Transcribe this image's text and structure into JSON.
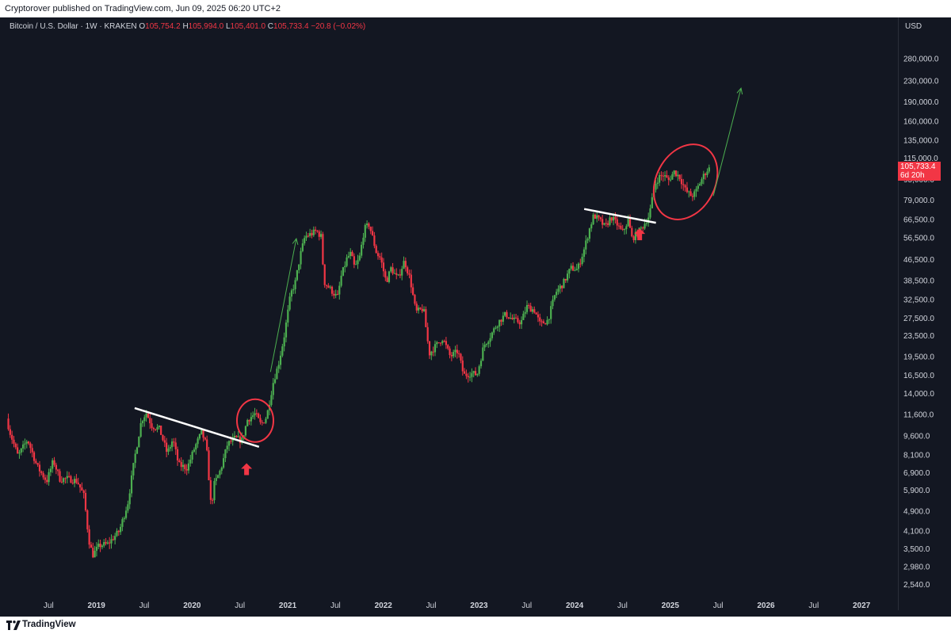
{
  "header": {
    "publisher_line": "Cryptorover published on TradingView.com, Jun 09, 2025 06:20 UTC+2"
  },
  "legend": {
    "symbol": "Bitcoin / U.S. Dollar · 1W · KRAKEN",
    "o_label": "O",
    "o_value": "105,754.2",
    "h_label": "H",
    "h_value": "105,994.0",
    "l_label": "L",
    "l_value": "105,401.0",
    "c_label": "C",
    "c_value": "105,733.4",
    "change": "−20.8 (−0.02%)"
  },
  "price_axis": {
    "currency": "USD"
  },
  "last_price": {
    "value": "105,733.4",
    "countdown": "6d 20h"
  },
  "footer": {
    "brand": "TradingView"
  },
  "colors": {
    "background": "#131722",
    "up": "#4caf50",
    "down": "#f23645",
    "mixed": "#c8a45c",
    "trendline": "#ffffff",
    "arrow_green": "#4caf50",
    "marker_red": "#f23645"
  },
  "chart_data": {
    "type": "candlestick",
    "scale": "log",
    "interval": "1W",
    "ylim": [
      2300,
      350000
    ],
    "y_ticks": [
      {
        "label": "280,000.0",
        "value": 280000
      },
      {
        "label": "230,000.0",
        "value": 230000
      },
      {
        "label": "190,000.0",
        "value": 190000
      },
      {
        "label": "160,000.0",
        "value": 160000
      },
      {
        "label": "135,000.0",
        "value": 135000
      },
      {
        "label": "115,000.0",
        "value": 115000
      },
      {
        "label": "95,000.0",
        "value": 95000
      },
      {
        "label": "79,000.0",
        "value": 79000
      },
      {
        "label": "66,500.0",
        "value": 66500
      },
      {
        "label": "56,500.0",
        "value": 56500
      },
      {
        "label": "46,500.0",
        "value": 46500
      },
      {
        "label": "38,500.0",
        "value": 38500
      },
      {
        "label": "32,500.0",
        "value": 32500
      },
      {
        "label": "27,500.0",
        "value": 27500
      },
      {
        "label": "23,500.0",
        "value": 23500
      },
      {
        "label": "19,500.0",
        "value": 19500
      },
      {
        "label": "16,500.0",
        "value": 16500
      },
      {
        "label": "14,000.0",
        "value": 14000
      },
      {
        "label": "11,600.0",
        "value": 11600
      },
      {
        "label": "9,600.0",
        "value": 9600
      },
      {
        "label": "8,100.0",
        "value": 8100
      },
      {
        "label": "6,900.0",
        "value": 6900
      },
      {
        "label": "5,900.0",
        "value": 5900
      },
      {
        "label": "4,900.0",
        "value": 4900
      },
      {
        "label": "4,100.0",
        "value": 4100
      },
      {
        "label": "3,500.0",
        "value": 3500
      },
      {
        "label": "2,980.0",
        "value": 2980
      },
      {
        "label": "2,540.0",
        "value": 2540
      }
    ],
    "x_ticks": [
      {
        "label": "Jul",
        "t": 2018.5,
        "bold": false
      },
      {
        "label": "2019",
        "t": 2019.0,
        "bold": true
      },
      {
        "label": "Jul",
        "t": 2019.5,
        "bold": false
      },
      {
        "label": "2020",
        "t": 2020.0,
        "bold": true
      },
      {
        "label": "Jul",
        "t": 2020.5,
        "bold": false
      },
      {
        "label": "2021",
        "t": 2021.0,
        "bold": true
      },
      {
        "label": "Jul",
        "t": 2021.5,
        "bold": false
      },
      {
        "label": "2022",
        "t": 2022.0,
        "bold": true
      },
      {
        "label": "Jul",
        "t": 2022.5,
        "bold": false
      },
      {
        "label": "2023",
        "t": 2023.0,
        "bold": true
      },
      {
        "label": "Jul",
        "t": 2023.5,
        "bold": false
      },
      {
        "label": "2024",
        "t": 2024.0,
        "bold": true
      },
      {
        "label": "Jul",
        "t": 2024.5,
        "bold": false
      },
      {
        "label": "2025",
        "t": 2025.0,
        "bold": true
      },
      {
        "label": "Jul",
        "t": 2025.5,
        "bold": false
      },
      {
        "label": "2026",
        "t": 2026.0,
        "bold": true
      },
      {
        "label": "Jul",
        "t": 2026.5,
        "bold": false
      },
      {
        "label": "2027",
        "t": 2027.0,
        "bold": true
      }
    ],
    "price_path": [
      [
        2018.06,
        11200
      ],
      [
        2018.1,
        9800
      ],
      [
        2018.18,
        8000
      ],
      [
        2018.28,
        9300
      ],
      [
        2018.38,
        7300
      ],
      [
        2018.48,
        6400
      ],
      [
        2018.55,
        7700
      ],
      [
        2018.62,
        6500
      ],
      [
        2018.7,
        6550
      ],
      [
        2018.8,
        6400
      ],
      [
        2018.87,
        5600
      ],
      [
        2018.92,
        3800
      ],
      [
        2018.96,
        3300
      ],
      [
        2019.03,
        3600
      ],
      [
        2019.12,
        3650
      ],
      [
        2019.24,
        4100
      ],
      [
        2019.33,
        5300
      ],
      [
        2019.4,
        7900
      ],
      [
        2019.47,
        11000
      ],
      [
        2019.52,
        11800
      ],
      [
        2019.58,
        10500
      ],
      [
        2019.66,
        10200
      ],
      [
        2019.74,
        8200
      ],
      [
        2019.8,
        9300
      ],
      [
        2019.86,
        7400
      ],
      [
        2019.95,
        7200
      ],
      [
        2020.03,
        8700
      ],
      [
        2020.1,
        9900
      ],
      [
        2020.15,
        8800
      ],
      [
        2020.2,
        5000
      ],
      [
        2020.23,
        6200
      ],
      [
        2020.3,
        7100
      ],
      [
        2020.37,
        8900
      ],
      [
        2020.45,
        9400
      ],
      [
        2020.52,
        9200
      ],
      [
        2020.58,
        11100
      ],
      [
        2020.66,
        11700
      ],
      [
        2020.72,
        10600
      ],
      [
        2020.78,
        11400
      ],
      [
        2020.85,
        15600
      ],
      [
        2020.9,
        18000
      ],
      [
        2020.96,
        23000
      ],
      [
        2021.03,
        34000
      ],
      [
        2021.08,
        38000
      ],
      [
        2021.13,
        48000
      ],
      [
        2021.18,
        57000
      ],
      [
        2021.25,
        58500
      ],
      [
        2021.3,
        60000
      ],
      [
        2021.35,
        57000
      ],
      [
        2021.38,
        38000
      ],
      [
        2021.45,
        35500
      ],
      [
        2021.52,
        33000
      ],
      [
        2021.56,
        40000
      ],
      [
        2021.62,
        47000
      ],
      [
        2021.66,
        49000
      ],
      [
        2021.7,
        43000
      ],
      [
        2021.75,
        47000
      ],
      [
        2021.8,
        61000
      ],
      [
        2021.85,
        63500
      ],
      [
        2021.88,
        58000
      ],
      [
        2021.93,
        49000
      ],
      [
        2021.97,
        47000
      ],
      [
        2022.03,
        38000
      ],
      [
        2022.08,
        43000
      ],
      [
        2022.15,
        39000
      ],
      [
        2022.22,
        46000
      ],
      [
        2022.28,
        39000
      ],
      [
        2022.34,
        29000
      ],
      [
        2022.42,
        30000
      ],
      [
        2022.48,
        20000
      ],
      [
        2022.55,
        21500
      ],
      [
        2022.62,
        23000
      ],
      [
        2022.7,
        19500
      ],
      [
        2022.78,
        20500
      ],
      [
        2022.84,
        16500
      ],
      [
        2022.92,
        16800
      ],
      [
        2022.98,
        16600
      ],
      [
        2023.05,
        21500
      ],
      [
        2023.12,
        23500
      ],
      [
        2023.2,
        26500
      ],
      [
        2023.28,
        28500
      ],
      [
        2023.36,
        27000
      ],
      [
        2023.44,
        26500
      ],
      [
        2023.5,
        30500
      ],
      [
        2023.58,
        29500
      ],
      [
        2023.64,
        26000
      ],
      [
        2023.72,
        27000
      ],
      [
        2023.8,
        34500
      ],
      [
        2023.88,
        37500
      ],
      [
        2023.96,
        43000
      ],
      [
        2024.03,
        42500
      ],
      [
        2024.1,
        51000
      ],
      [
        2024.16,
        62000
      ],
      [
        2024.2,
        69000
      ],
      [
        2024.26,
        66000
      ],
      [
        2024.32,
        62000
      ],
      [
        2024.38,
        68000
      ],
      [
        2024.44,
        64000
      ],
      [
        2024.5,
        59000
      ],
      [
        2024.56,
        66000
      ],
      [
        2024.6,
        56000
      ],
      [
        2024.66,
        59000
      ],
      [
        2024.72,
        63000
      ],
      [
        2024.78,
        69000
      ],
      [
        2024.84,
        91000
      ],
      [
        2024.88,
        97000
      ],
      [
        2024.93,
        99000
      ],
      [
        2024.98,
        94000
      ],
      [
        2025.04,
        102000
      ],
      [
        2025.1,
        97000
      ],
      [
        2025.16,
        86000
      ],
      [
        2025.22,
        82000
      ],
      [
        2025.26,
        84000
      ],
      [
        2025.32,
        94000
      ],
      [
        2025.38,
        103000
      ],
      [
        2025.42,
        105700
      ]
    ],
    "annotations": {
      "trendlines": [
        {
          "from": [
            2019.4,
            12300
          ],
          "to": [
            2020.7,
            8700
          ]
        },
        {
          "from": [
            2024.1,
            73000
          ],
          "to": [
            2024.85,
            64500
          ]
        }
      ],
      "ellipses": [
        {
          "center": [
            2020.66,
            11000
          ]
        },
        {
          "center": [
            2025.16,
            93000
          ]
        }
      ],
      "projection_arrows": [
        {
          "from": [
            2020.82,
            17000
          ],
          "to": [
            2021.09,
            56000
          ]
        },
        {
          "from": [
            2025.45,
            82000
          ],
          "to": [
            2025.74,
            215000
          ]
        }
      ],
      "markers": [
        {
          "type": "up-arrow",
          "at": [
            2020.57,
            7100
          ]
        },
        {
          "type": "up-arrow",
          "at": [
            2024.68,
            58000
          ]
        }
      ]
    }
  }
}
